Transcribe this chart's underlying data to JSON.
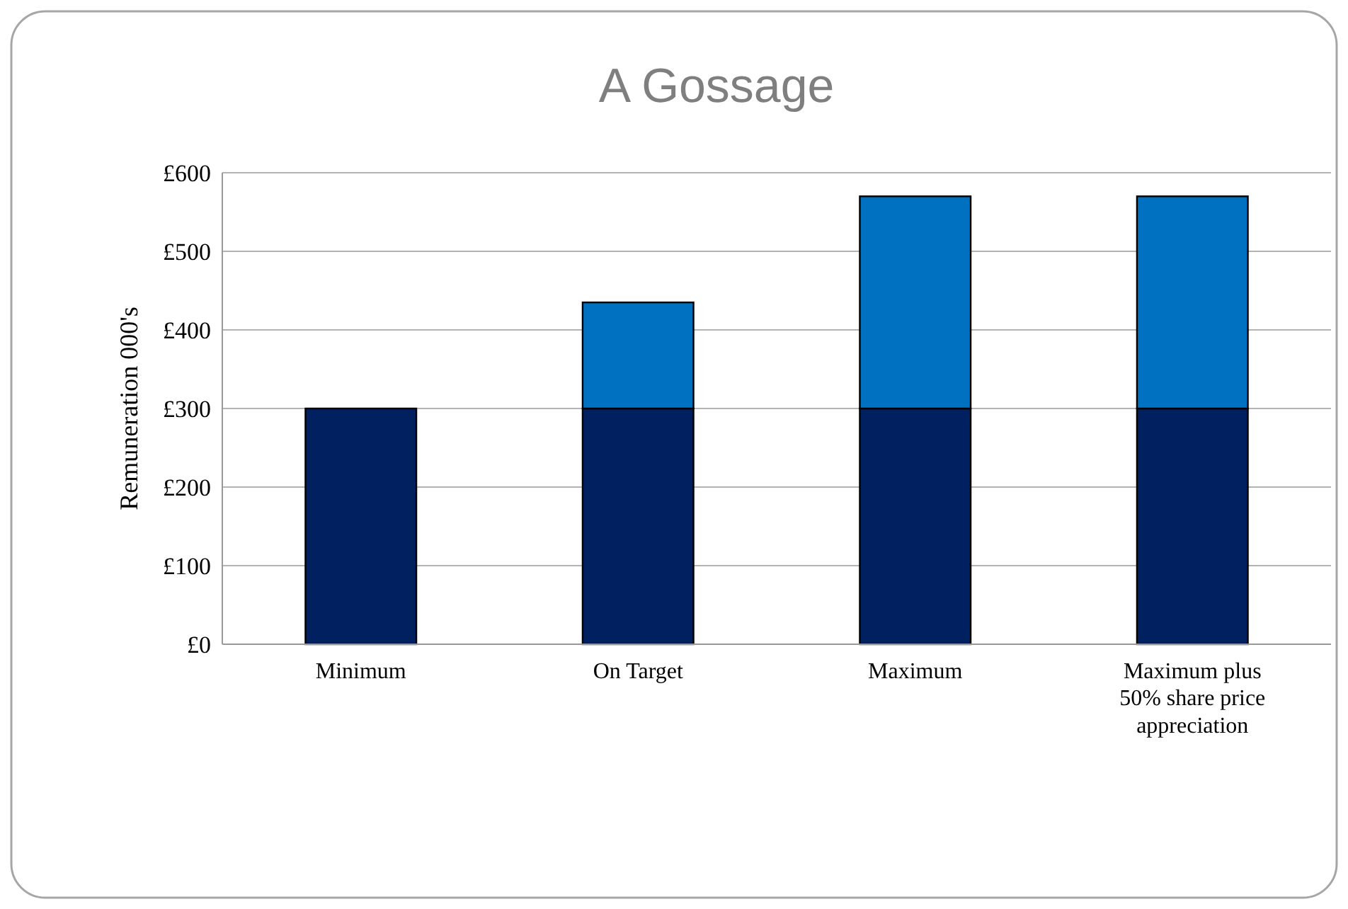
{
  "chart_data": {
    "type": "bar",
    "title": "A Gossage",
    "ylabel": "Remuneration 000's",
    "categories": [
      "Minimum",
      "On Target",
      "Maximum",
      "Maximum plus 50% share price appreciation"
    ],
    "series": [
      {
        "color": "#002060",
        "values": [
          300,
          300,
          300,
          300
        ]
      },
      {
        "color": "#0070c0",
        "values": [
          0,
          135,
          270,
          270
        ]
      }
    ],
    "stacked": true,
    "ylim": [
      0,
      600
    ],
    "yticks": [
      {
        "value": 0,
        "label": "£0"
      },
      {
        "value": 100,
        "label": "£100"
      },
      {
        "value": 200,
        "label": "£200"
      },
      {
        "value": 300,
        "label": "£300"
      },
      {
        "value": 400,
        "label": "£400"
      },
      {
        "value": 500,
        "label": "£500"
      },
      {
        "value": 600,
        "label": "£600"
      }
    ],
    "grid": "y"
  }
}
